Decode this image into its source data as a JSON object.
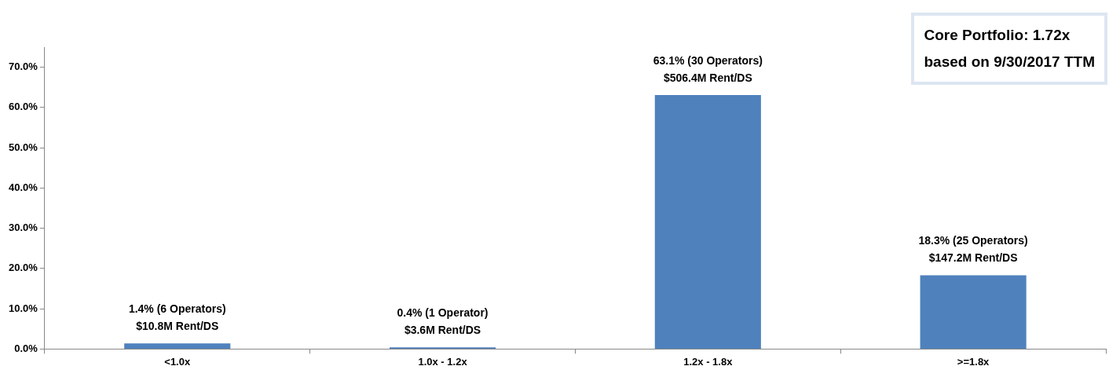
{
  "chart_data": {
    "type": "bar",
    "categories": [
      "<1.0x",
      "1.0x - 1.2x",
      "1.2x - 1.8x",
      ">=1.8x"
    ],
    "values": [
      1.4,
      0.4,
      63.1,
      18.3
    ],
    "value_labels": [
      "1.4% (6 Operators)\n$10.8M Rent/DS",
      "0.4% (1 Operator)\n$3.6M Rent/DS",
      "63.1% (30 Operators)\n$506.4M Rent/DS",
      "18.3% (25 Operators)\n$147.2M Rent/DS"
    ],
    "color": "#4f81bd",
    "ylim": [
      0,
      75
    ],
    "yticks": [
      {
        "value": 0,
        "label": "0.0%"
      },
      {
        "value": 10,
        "label": "10.0%"
      },
      {
        "value": 20,
        "label": "20.0%"
      },
      {
        "value": 30,
        "label": "30.0%"
      },
      {
        "value": 40,
        "label": "40.0%"
      },
      {
        "value": 50,
        "label": "50.0%"
      },
      {
        "value": 60,
        "label": "60.0%"
      },
      {
        "value": 70,
        "label": "70.0%"
      }
    ],
    "annotations": [
      "Core Portfolio:  1.72x\nbased on 9/30/2017 TTM"
    ],
    "grid": false,
    "legend": false
  }
}
